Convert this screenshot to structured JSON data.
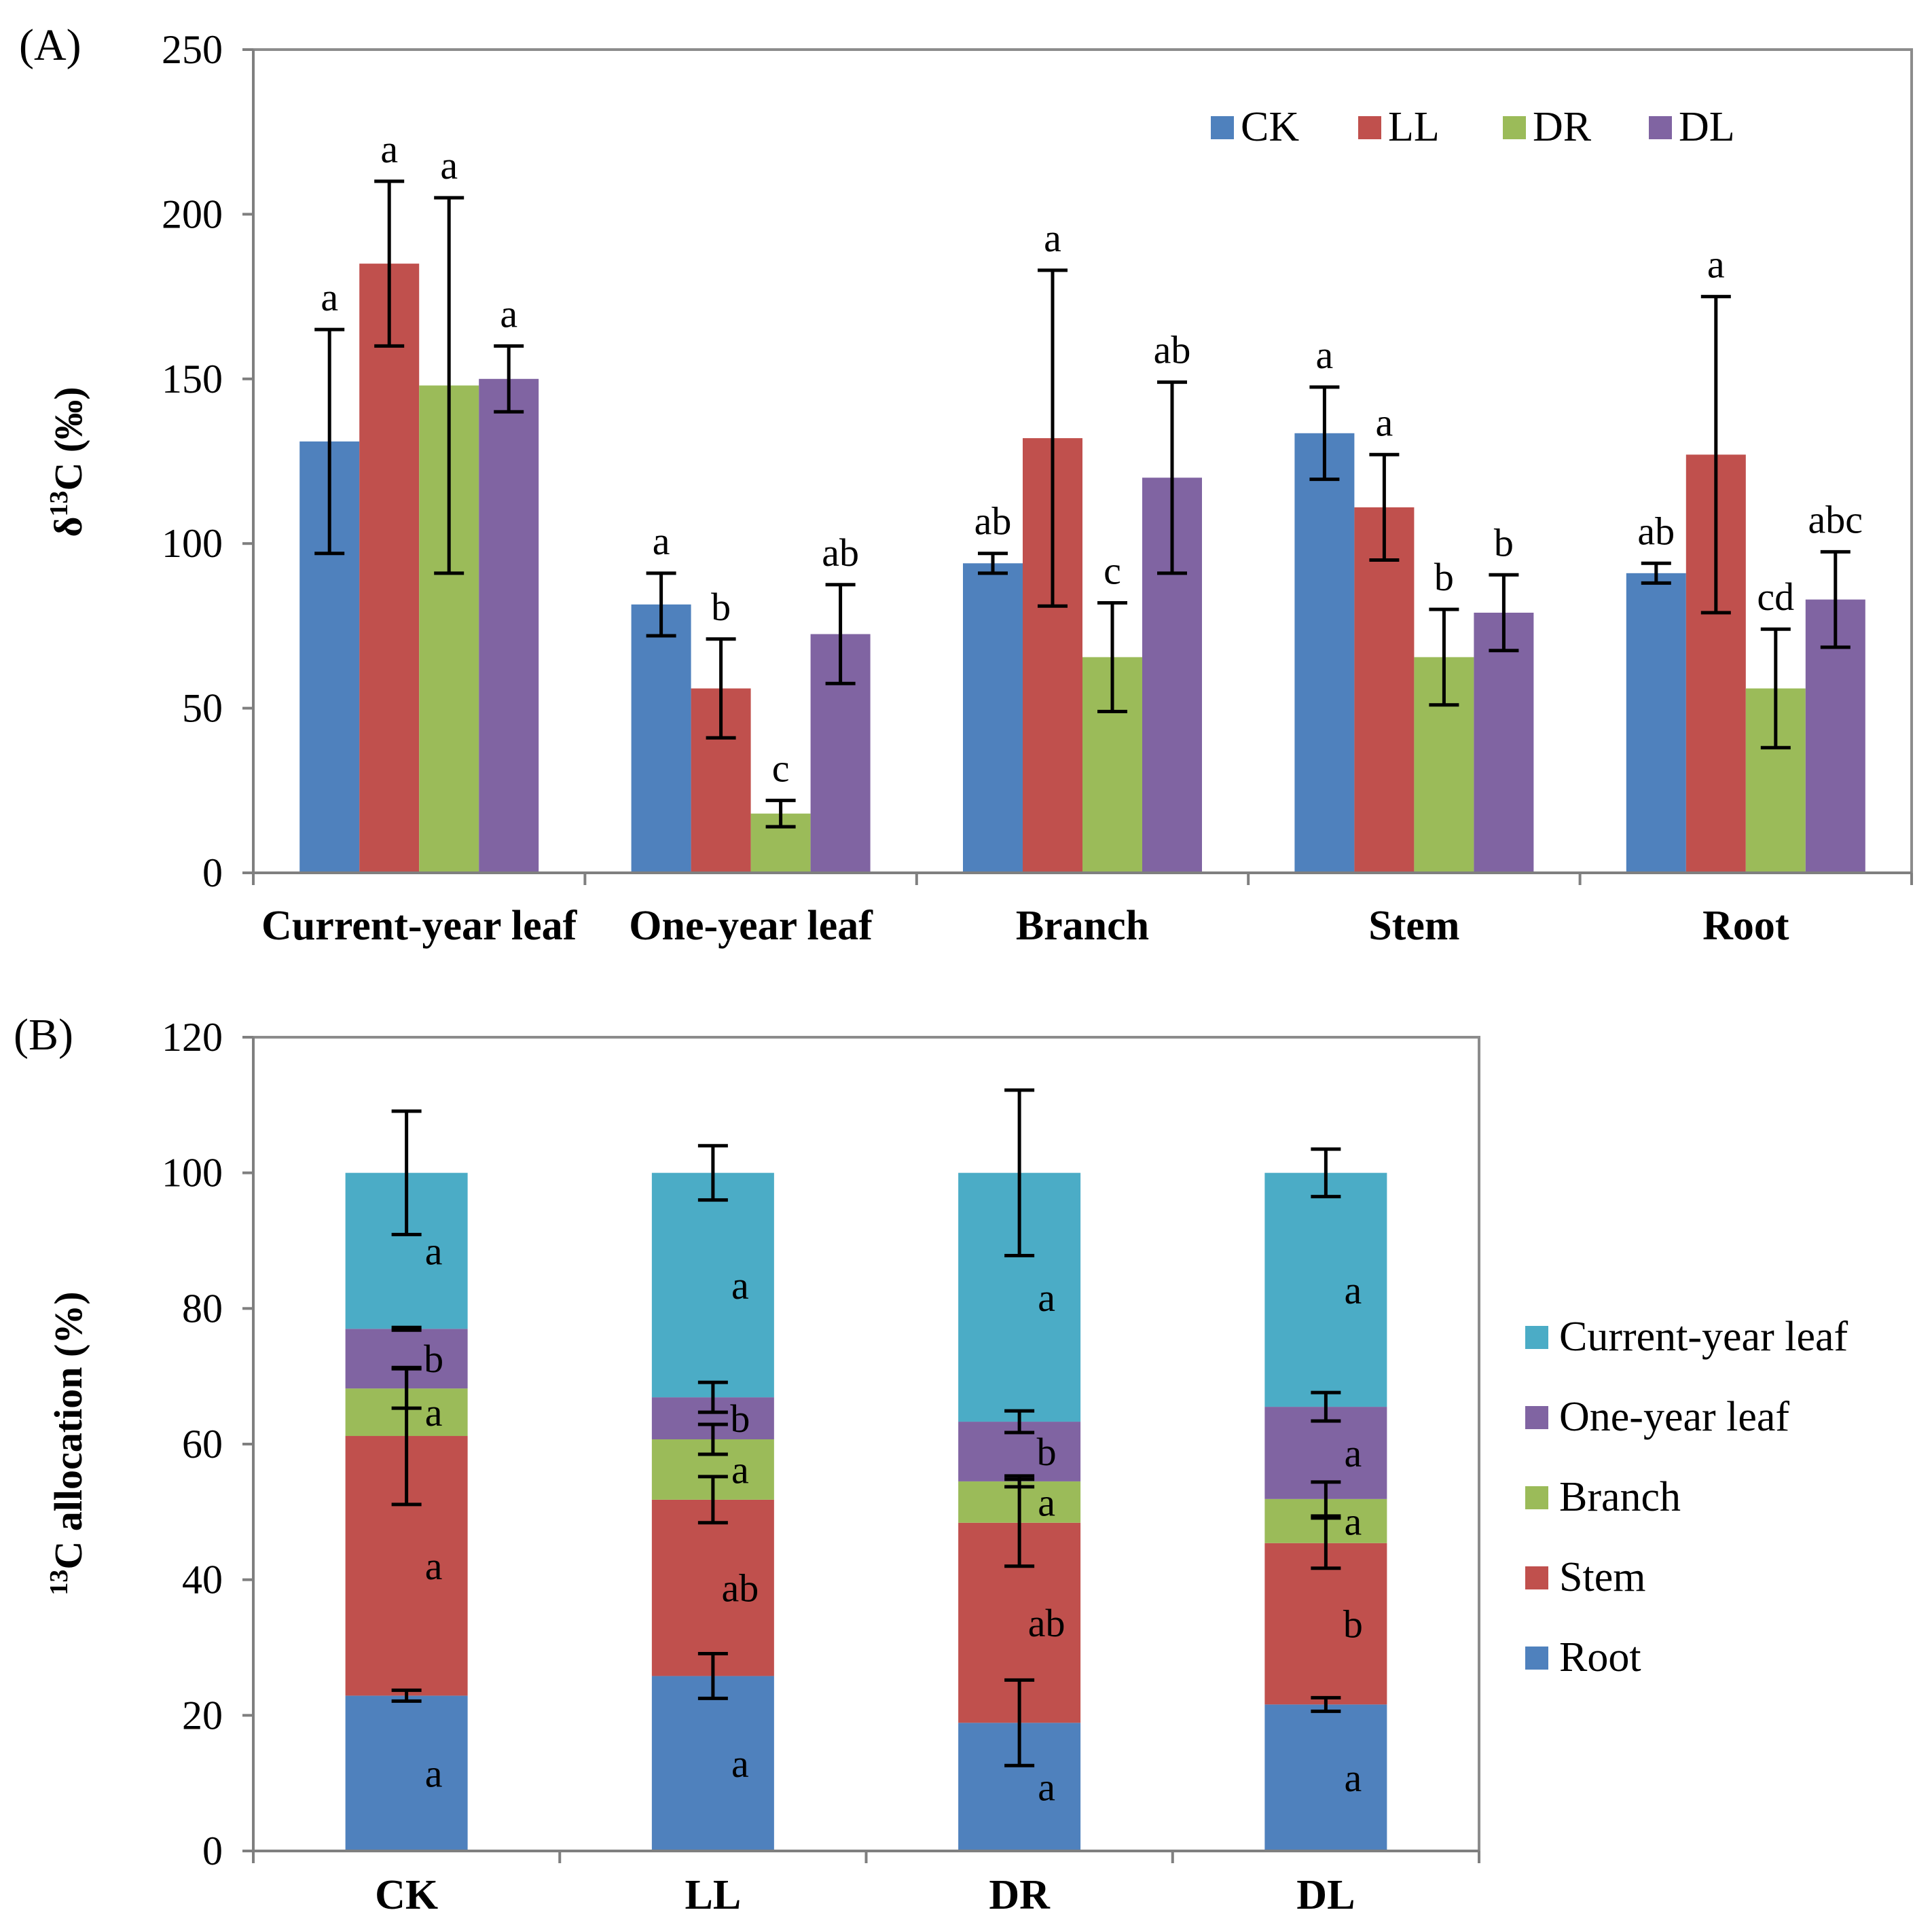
{
  "chart_data": [
    {
      "panel": "(A)",
      "type": "bar",
      "ylabel_main": "δ",
      "ylabel_sup": "13",
      "ylabel_rest": "C (‰)",
      "ylim": [
        0,
        250
      ],
      "yticks": [
        "0",
        "50",
        "100",
        "150",
        "200",
        "250"
      ],
      "categories": [
        "Current-year leaf",
        "One-year leaf",
        "Branch",
        "Stem",
        "Root"
      ],
      "legend_position": "top-right",
      "series": [
        {
          "name": "CK",
          "color": "#4f81bd",
          "values": [
            131,
            81.5,
            94,
            133.5,
            91
          ],
          "errors": [
            34,
            9.5,
            3,
            14,
            3
          ],
          "letters": [
            "a",
            "a",
            "ab",
            "a",
            "ab"
          ]
        },
        {
          "name": "LL",
          "color": "#c0504d",
          "values": [
            185,
            56,
            132,
            111,
            127
          ],
          "errors": [
            25,
            15,
            51,
            16,
            48
          ],
          "letters": [
            "a",
            "b",
            "a",
            "a",
            "a"
          ]
        },
        {
          "name": "DR",
          "color": "#9bbb59",
          "values": [
            148,
            18,
            65.5,
            65.5,
            56
          ],
          "errors": [
            57,
            4,
            16.5,
            14.5,
            18
          ],
          "letters": [
            "a",
            "c",
            "c",
            "b",
            "cd"
          ]
        },
        {
          "name": "DL",
          "color": "#8064a2",
          "values": [
            150,
            72.5,
            120,
            79,
            83
          ],
          "errors": [
            10,
            15,
            29,
            11.5,
            14.5
          ],
          "letters": [
            "a",
            "ab",
            "ab",
            "b",
            "abc"
          ]
        }
      ]
    },
    {
      "panel": "(B)",
      "type": "stacked-bar",
      "ylabel_sup": "13",
      "ylabel_rest": "C allocation (%)",
      "ylim": [
        0,
        120
      ],
      "yticks": [
        "0",
        "20",
        "40",
        "60",
        "80",
        "100",
        "120"
      ],
      "categories": [
        "CK",
        "LL",
        "DR",
        "DL"
      ],
      "legend_position": "right",
      "legend_order": [
        "Current-year leaf",
        "One-year leaf",
        "Branch",
        "Stem",
        "Root"
      ],
      "series": [
        {
          "name": "Root",
          "color": "#4f81bd",
          "values": [
            22.9,
            25.8,
            18.9,
            21.6
          ],
          "errors": [
            0.8,
            3.3,
            6.3,
            1.0
          ],
          "letters": [
            "a",
            "a",
            "a",
            "a"
          ]
        },
        {
          "name": "Stem",
          "color": "#c0504d",
          "values": [
            38.3,
            26.0,
            29.5,
            23.8
          ],
          "errors": [
            10.1,
            3.4,
            6.4,
            3.7
          ],
          "letters": [
            "a",
            "ab",
            "ab",
            "b"
          ]
        },
        {
          "name": "Branch",
          "color": "#9bbb59",
          "values": [
            7.0,
            8.9,
            6.1,
            6.5
          ],
          "errors": [
            2.9,
            2.2,
            0.8,
            2.5
          ],
          "letters": [
            "a",
            "a",
            "a",
            "a"
          ]
        },
        {
          "name": "One-year leaf",
          "color": "#8064a2",
          "values": [
            8.8,
            6.2,
            8.8,
            13.6
          ],
          "errors": [
            0.2,
            2.2,
            1.6,
            2.1
          ],
          "letters": [
            "b",
            "b",
            "b",
            "a"
          ]
        },
        {
          "name": "Current-year leaf",
          "color": "#4bacc6",
          "values": [
            23.0,
            33.1,
            36.7,
            34.5
          ],
          "errors": [
            9.1,
            4.0,
            12.2,
            3.5
          ],
          "letters": [
            "a",
            "a",
            "a",
            "a"
          ]
        }
      ]
    }
  ]
}
